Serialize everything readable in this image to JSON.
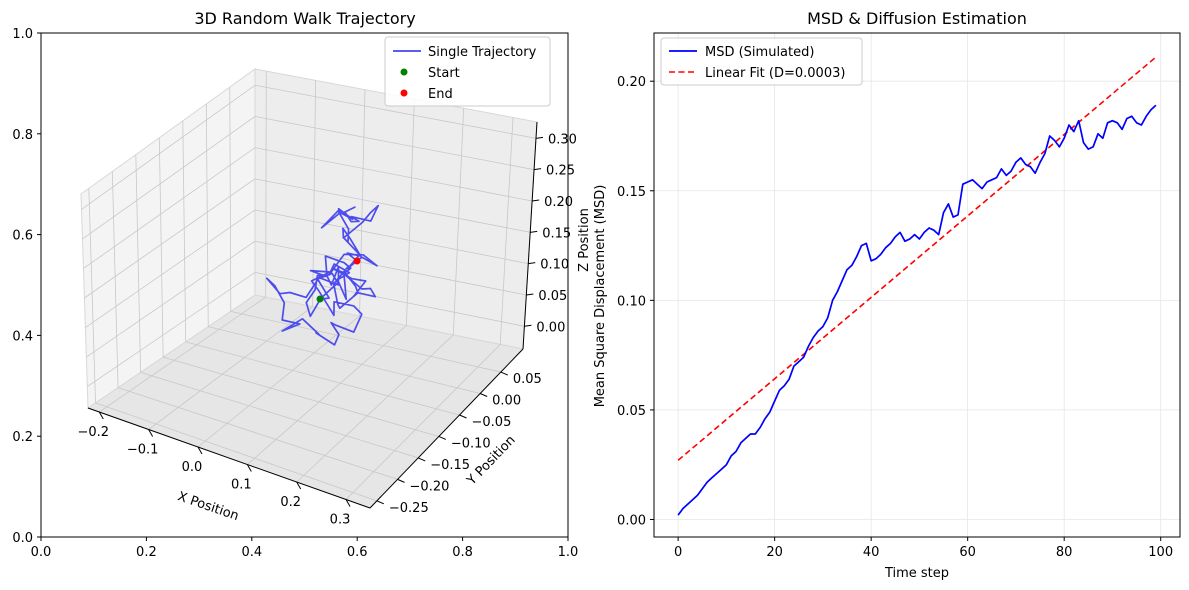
{
  "chart_data": [
    {
      "type": "scatter",
      "subtype": "3d-line",
      "title": "3D Random Walk Trajectory",
      "xlabel": "X Position",
      "ylabel": "Y Position",
      "zlabel": "Z Position",
      "x_ticks": [
        "−0.2",
        "−0.1",
        "0.0",
        "0.1",
        "0.2",
        "0.3"
      ],
      "y_ticks": [
        "−0.25",
        "−0.20",
        "−0.15",
        "−0.10",
        "−0.05",
        "0.00",
        "0.05"
      ],
      "z_ticks": [
        "0.00",
        "0.05",
        "0.10",
        "0.15",
        "0.20",
        "0.25",
        "0.30"
      ],
      "outer_x_ticks": [
        "0.0",
        "0.2",
        "0.4",
        "0.6",
        "0.8",
        "1.0"
      ],
      "outer_y_ticks": [
        "0.0",
        "0.2",
        "0.4",
        "0.6",
        "0.8",
        "1.0"
      ],
      "legend": [
        {
          "label": "Single Trajectory",
          "color": "#4444ee",
          "marker": "line"
        },
        {
          "label": "Start",
          "color": "#008000",
          "marker": "dot"
        },
        {
          "label": "End",
          "color": "#ff0000",
          "marker": "dot"
        }
      ],
      "legend_position": "upper right",
      "grid": true
    },
    {
      "type": "line",
      "title": "MSD & Diffusion Estimation",
      "xlabel": "Time step",
      "ylabel": "Mean Square Displacement (MSD)",
      "xlim": [
        -5,
        104
      ],
      "ylim": [
        -0.008,
        0.222
      ],
      "x_ticks": [
        0,
        20,
        40,
        60,
        80,
        100
      ],
      "y_ticks": [
        "0.00",
        "0.05",
        "0.10",
        "0.15",
        "0.20"
      ],
      "grid": true,
      "legend_position": "upper left",
      "series": [
        {
          "name": "MSD (Simulated)",
          "color": "#0000ff",
          "style": "solid",
          "x": [
            0,
            1,
            2,
            3,
            4,
            5,
            6,
            7,
            8,
            9,
            10,
            11,
            12,
            13,
            14,
            15,
            16,
            17,
            18,
            19,
            20,
            21,
            22,
            23,
            24,
            25,
            26,
            27,
            28,
            29,
            30,
            31,
            32,
            33,
            34,
            35,
            36,
            37,
            38,
            39,
            40,
            41,
            42,
            43,
            44,
            45,
            46,
            47,
            48,
            49,
            50,
            51,
            52,
            53,
            54,
            55,
            56,
            57,
            58,
            59,
            60,
            61,
            62,
            63,
            64,
            65,
            66,
            67,
            68,
            69,
            70,
            71,
            72,
            73,
            74,
            75,
            76,
            77,
            78,
            79,
            80,
            81,
            82,
            83,
            84,
            85,
            86,
            87,
            88,
            89,
            90,
            91,
            92,
            93,
            94,
            95,
            96,
            97,
            98,
            99
          ],
          "y": [
            0.002,
            0.005,
            0.007,
            0.009,
            0.011,
            0.014,
            0.017,
            0.019,
            0.021,
            0.023,
            0.025,
            0.029,
            0.031,
            0.035,
            0.037,
            0.039,
            0.039,
            0.042,
            0.046,
            0.049,
            0.054,
            0.059,
            0.061,
            0.064,
            0.07,
            0.072,
            0.074,
            0.079,
            0.083,
            0.086,
            0.088,
            0.092,
            0.1,
            0.104,
            0.109,
            0.114,
            0.116,
            0.12,
            0.125,
            0.126,
            0.118,
            0.119,
            0.121,
            0.124,
            0.126,
            0.129,
            0.131,
            0.127,
            0.128,
            0.13,
            0.128,
            0.131,
            0.133,
            0.132,
            0.13,
            0.14,
            0.144,
            0.138,
            0.139,
            0.153,
            0.154,
            0.155,
            0.153,
            0.151,
            0.154,
            0.155,
            0.156,
            0.16,
            0.157,
            0.159,
            0.163,
            0.165,
            0.162,
            0.161,
            0.158,
            0.163,
            0.167,
            0.175,
            0.173,
            0.17,
            0.174,
            0.18,
            0.177,
            0.182,
            0.172,
            0.169,
            0.17,
            0.176,
            0.174,
            0.181,
            0.182,
            0.181,
            0.178,
            0.183,
            0.184,
            0.181,
            0.18,
            0.184,
            0.187,
            0.189
          ]
        },
        {
          "name": "Linear Fit (D=0.0003)",
          "color": "#ff0000",
          "style": "dashed",
          "x": [
            0,
            99
          ],
          "y": [
            0.027,
            0.211
          ]
        }
      ]
    }
  ]
}
